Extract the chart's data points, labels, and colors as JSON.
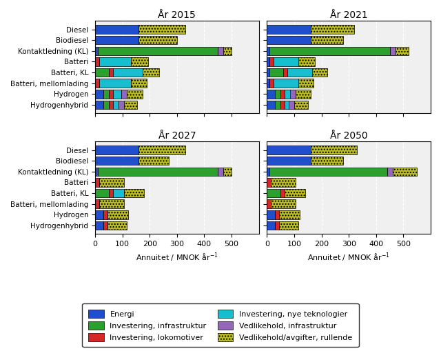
{
  "years": [
    "År 2015",
    "År 2021",
    "År 2027",
    "År 2050"
  ],
  "categories": [
    "Diesel",
    "Biodiesel",
    "Kontaktledning (KL)",
    "Batteri",
    "Batteri, KL",
    "Batteri, mellomlading",
    "Hydrogen",
    "Hydrogenhybrid"
  ],
  "colors": {
    "Energi": "#1f4fcc",
    "Investering, infrastruktur": "#2ca02c",
    "Investering, lokomotiver": "#d62728",
    "Investering, nye teknologier": "#17becf",
    "Vedlikehold, infrastruktur": "#9467bd",
    "Vedlikehold/avgifter, rullende": "#bcbd22"
  },
  "segment_order": [
    "Energi",
    "Investering, infrastruktur",
    "Investering, lokomotiver",
    "Investering, nye teknologier",
    "Vedlikehold, infrastruktur",
    "Vedlikehold/avgifter, rullende"
  ],
  "data": {
    "År 2015": {
      "Diesel": [
        160,
        0,
        0,
        0,
        0,
        170
      ],
      "Biodiesel": [
        160,
        0,
        0,
        0,
        0,
        140
      ],
      "Kontaktledning (KL)": [
        10,
        430,
        0,
        0,
        20,
        30
      ],
      "Batteri": [
        0,
        0,
        15,
        120,
        0,
        65
      ],
      "Batteri, KL": [
        0,
        50,
        15,
        110,
        0,
        60
      ],
      "Batteri, mellomlading": [
        0,
        0,
        15,
        120,
        0,
        60
      ],
      "Hydrogen": [
        30,
        20,
        15,
        30,
        20,
        60
      ],
      "Hydrogenhybrid": [
        30,
        20,
        15,
        20,
        20,
        50
      ]
    },
    "År 2021": {
      "Diesel": [
        160,
        0,
        0,
        0,
        0,
        160
      ],
      "Biodiesel": [
        160,
        0,
        0,
        0,
        0,
        120
      ],
      "Kontaktledning (KL)": [
        10,
        430,
        0,
        0,
        20,
        30
      ],
      "Batteri": [
        10,
        0,
        15,
        90,
        0,
        60
      ],
      "Batteri, KL": [
        10,
        50,
        15,
        90,
        0,
        55
      ],
      "Batteri, mellomlading": [
        10,
        0,
        15,
        90,
        0,
        55
      ],
      "Hydrogen": [
        30,
        20,
        15,
        20,
        20,
        55
      ],
      "Hydrogenhybrid": [
        30,
        20,
        15,
        15,
        20,
        50
      ]
    },
    "År 2027": {
      "Diesel": [
        160,
        0,
        0,
        0,
        0,
        170
      ],
      "Biodiesel": [
        160,
        0,
        0,
        0,
        0,
        110
      ],
      "Kontaktledning (KL)": [
        10,
        430,
        0,
        0,
        20,
        30
      ],
      "Batteri": [
        0,
        0,
        15,
        0,
        0,
        90
      ],
      "Batteri, KL": [
        0,
        50,
        15,
        40,
        0,
        75
      ],
      "Batteri, mellomlading": [
        0,
        0,
        15,
        0,
        0,
        90
      ],
      "Hydrogen": [
        30,
        0,
        15,
        0,
        0,
        75
      ],
      "Hydrogenhybrid": [
        30,
        0,
        15,
        0,
        0,
        70
      ]
    },
    "År 2050": {
      "Diesel": [
        160,
        0,
        0,
        0,
        0,
        170
      ],
      "Biodiesel": [
        160,
        0,
        0,
        0,
        0,
        120
      ],
      "Kontaktledning (KL)": [
        10,
        430,
        0,
        0,
        20,
        90
      ],
      "Batteri": [
        0,
        0,
        15,
        0,
        0,
        90
      ],
      "Batteri, KL": [
        0,
        50,
        15,
        0,
        0,
        75
      ],
      "Batteri, mellomlading": [
        0,
        0,
        15,
        0,
        0,
        90
      ],
      "Hydrogen": [
        30,
        0,
        15,
        0,
        0,
        75
      ],
      "Hydrogenhybrid": [
        30,
        0,
        15,
        0,
        0,
        70
      ]
    }
  },
  "xlim": [
    0,
    600
  ],
  "xticks": [
    0,
    100,
    200,
    300,
    400,
    500
  ],
  "xlabel": "Annuitet / MNOK år⁻¹",
  "legend_labels": [
    "Energi",
    "Investering, infrastruktur",
    "Investering, lokomotiver",
    "Investering, nye teknologier",
    "Vedlikehold, infrastruktur",
    "Vedlikehold/avgifter, rullende"
  ],
  "background_color": "#f5f5f5"
}
